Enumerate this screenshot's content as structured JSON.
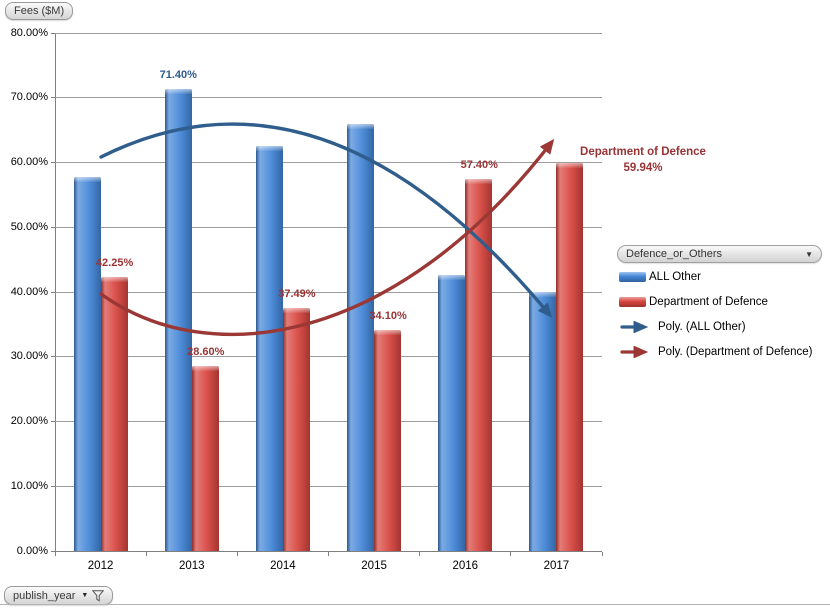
{
  "field_buttons": {
    "values_field": "Fees ($M)",
    "legend_field": "Defence_or_Others",
    "axis_field": "publish_year"
  },
  "legend": {
    "items": [
      {
        "label": "ALL Other",
        "swatch": "bar",
        "color": "#4386D8"
      },
      {
        "label": "Department of Defence",
        "swatch": "bar",
        "color": "#D8443E"
      },
      {
        "label": "Poly. (ALL Other)",
        "swatch": "arrow",
        "color": "#2F5D8C"
      },
      {
        "label": "Poly. (Department of Defence)",
        "swatch": "arrow",
        "color": "#9B3735"
      }
    ]
  },
  "chart_data": {
    "type": "bar",
    "categories": [
      "2012",
      "2013",
      "2014",
      "2015",
      "2016",
      "2017"
    ],
    "series": [
      {
        "name": "ALL Other",
        "color": "#4386D8",
        "label_color": "#2F5B8D",
        "values": [
          57.75,
          71.4,
          62.51,
          65.9,
          42.6,
          40.06
        ],
        "data_labels": [
          null,
          "71.40%",
          null,
          null,
          null,
          null
        ]
      },
      {
        "name": "Department of Defence",
        "color": "#D8443E",
        "label_color": "#9A3335",
        "values": [
          42.25,
          28.6,
          37.49,
          34.1,
          57.4,
          59.94
        ],
        "data_labels": [
          "42.25%",
          "28.60%",
          "37.49%",
          "34.10%",
          "57.40%",
          null
        ]
      }
    ],
    "callout_label": {
      "line1": "Department of Defence",
      "line2": "59.94%",
      "color": "#9A3335"
    },
    "trendlines": [
      {
        "name": "Poly. (ALL Other)",
        "color": "#2F5D8C",
        "shape": "downward-opening parabola, peak ~66% near 2013-2014, ends ~36% at 2017 with arrowhead"
      },
      {
        "name": "Poly. (Department of Defence)",
        "color": "#9B3735",
        "shape": "upward-opening parabola, dip ~33.5% near 2013, ends ~63% at 2017 with arrowhead"
      }
    ],
    "y_axis": {
      "ticks": [
        "80.00%",
        "70.00%",
        "60.00%",
        "50.00%",
        "40.00%",
        "30.00%",
        "20.00%",
        "10.00%",
        "0.00%"
      ],
      "min": 0,
      "max": 80
    },
    "x_axis": {
      "field": "publish_year"
    },
    "legend_position": "right",
    "grid": true
  }
}
